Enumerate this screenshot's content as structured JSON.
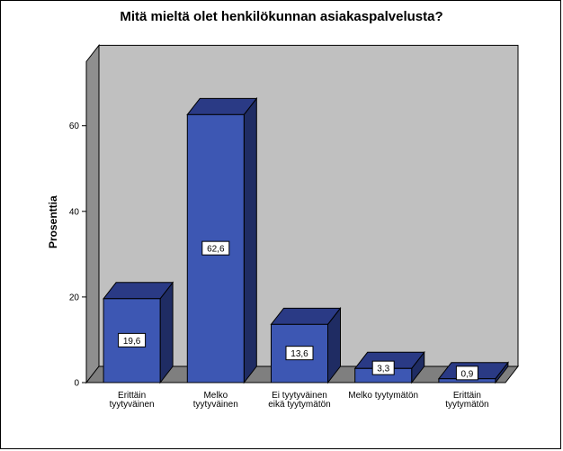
{
  "chart_data": {
    "type": "bar",
    "title": "Mitä mieltä olet henkilökunnan asiakaspalvelusta?",
    "ylabel": "Prosenttia",
    "xlabel": "",
    "categories": [
      [
        "Erittäin",
        "tyytyväinen"
      ],
      [
        "Melko",
        "tyytyväinen"
      ],
      [
        "Ei tyytyväinen",
        "eikä tyytymätön"
      ],
      [
        "Melko tyytymätön"
      ],
      [
        "Erittäin",
        "tyytymätön"
      ]
    ],
    "values": [
      19.6,
      62.6,
      13.6,
      3.3,
      0.9
    ],
    "value_labels": [
      "19,6",
      "62,6",
      "13,6",
      "3,3",
      "0,9"
    ],
    "yticks": [
      0,
      20,
      40,
      60
    ],
    "ylim": [
      0,
      75
    ],
    "grid": false,
    "style": "3d",
    "colors": {
      "bar_front": "#3d57b3",
      "bar_side": "#1f2c63",
      "bar_top": "#2a3a85",
      "wall_back": "#c0c0c0",
      "wall_side": "#8f8f8f",
      "floor": "#7f7f7f"
    }
  }
}
